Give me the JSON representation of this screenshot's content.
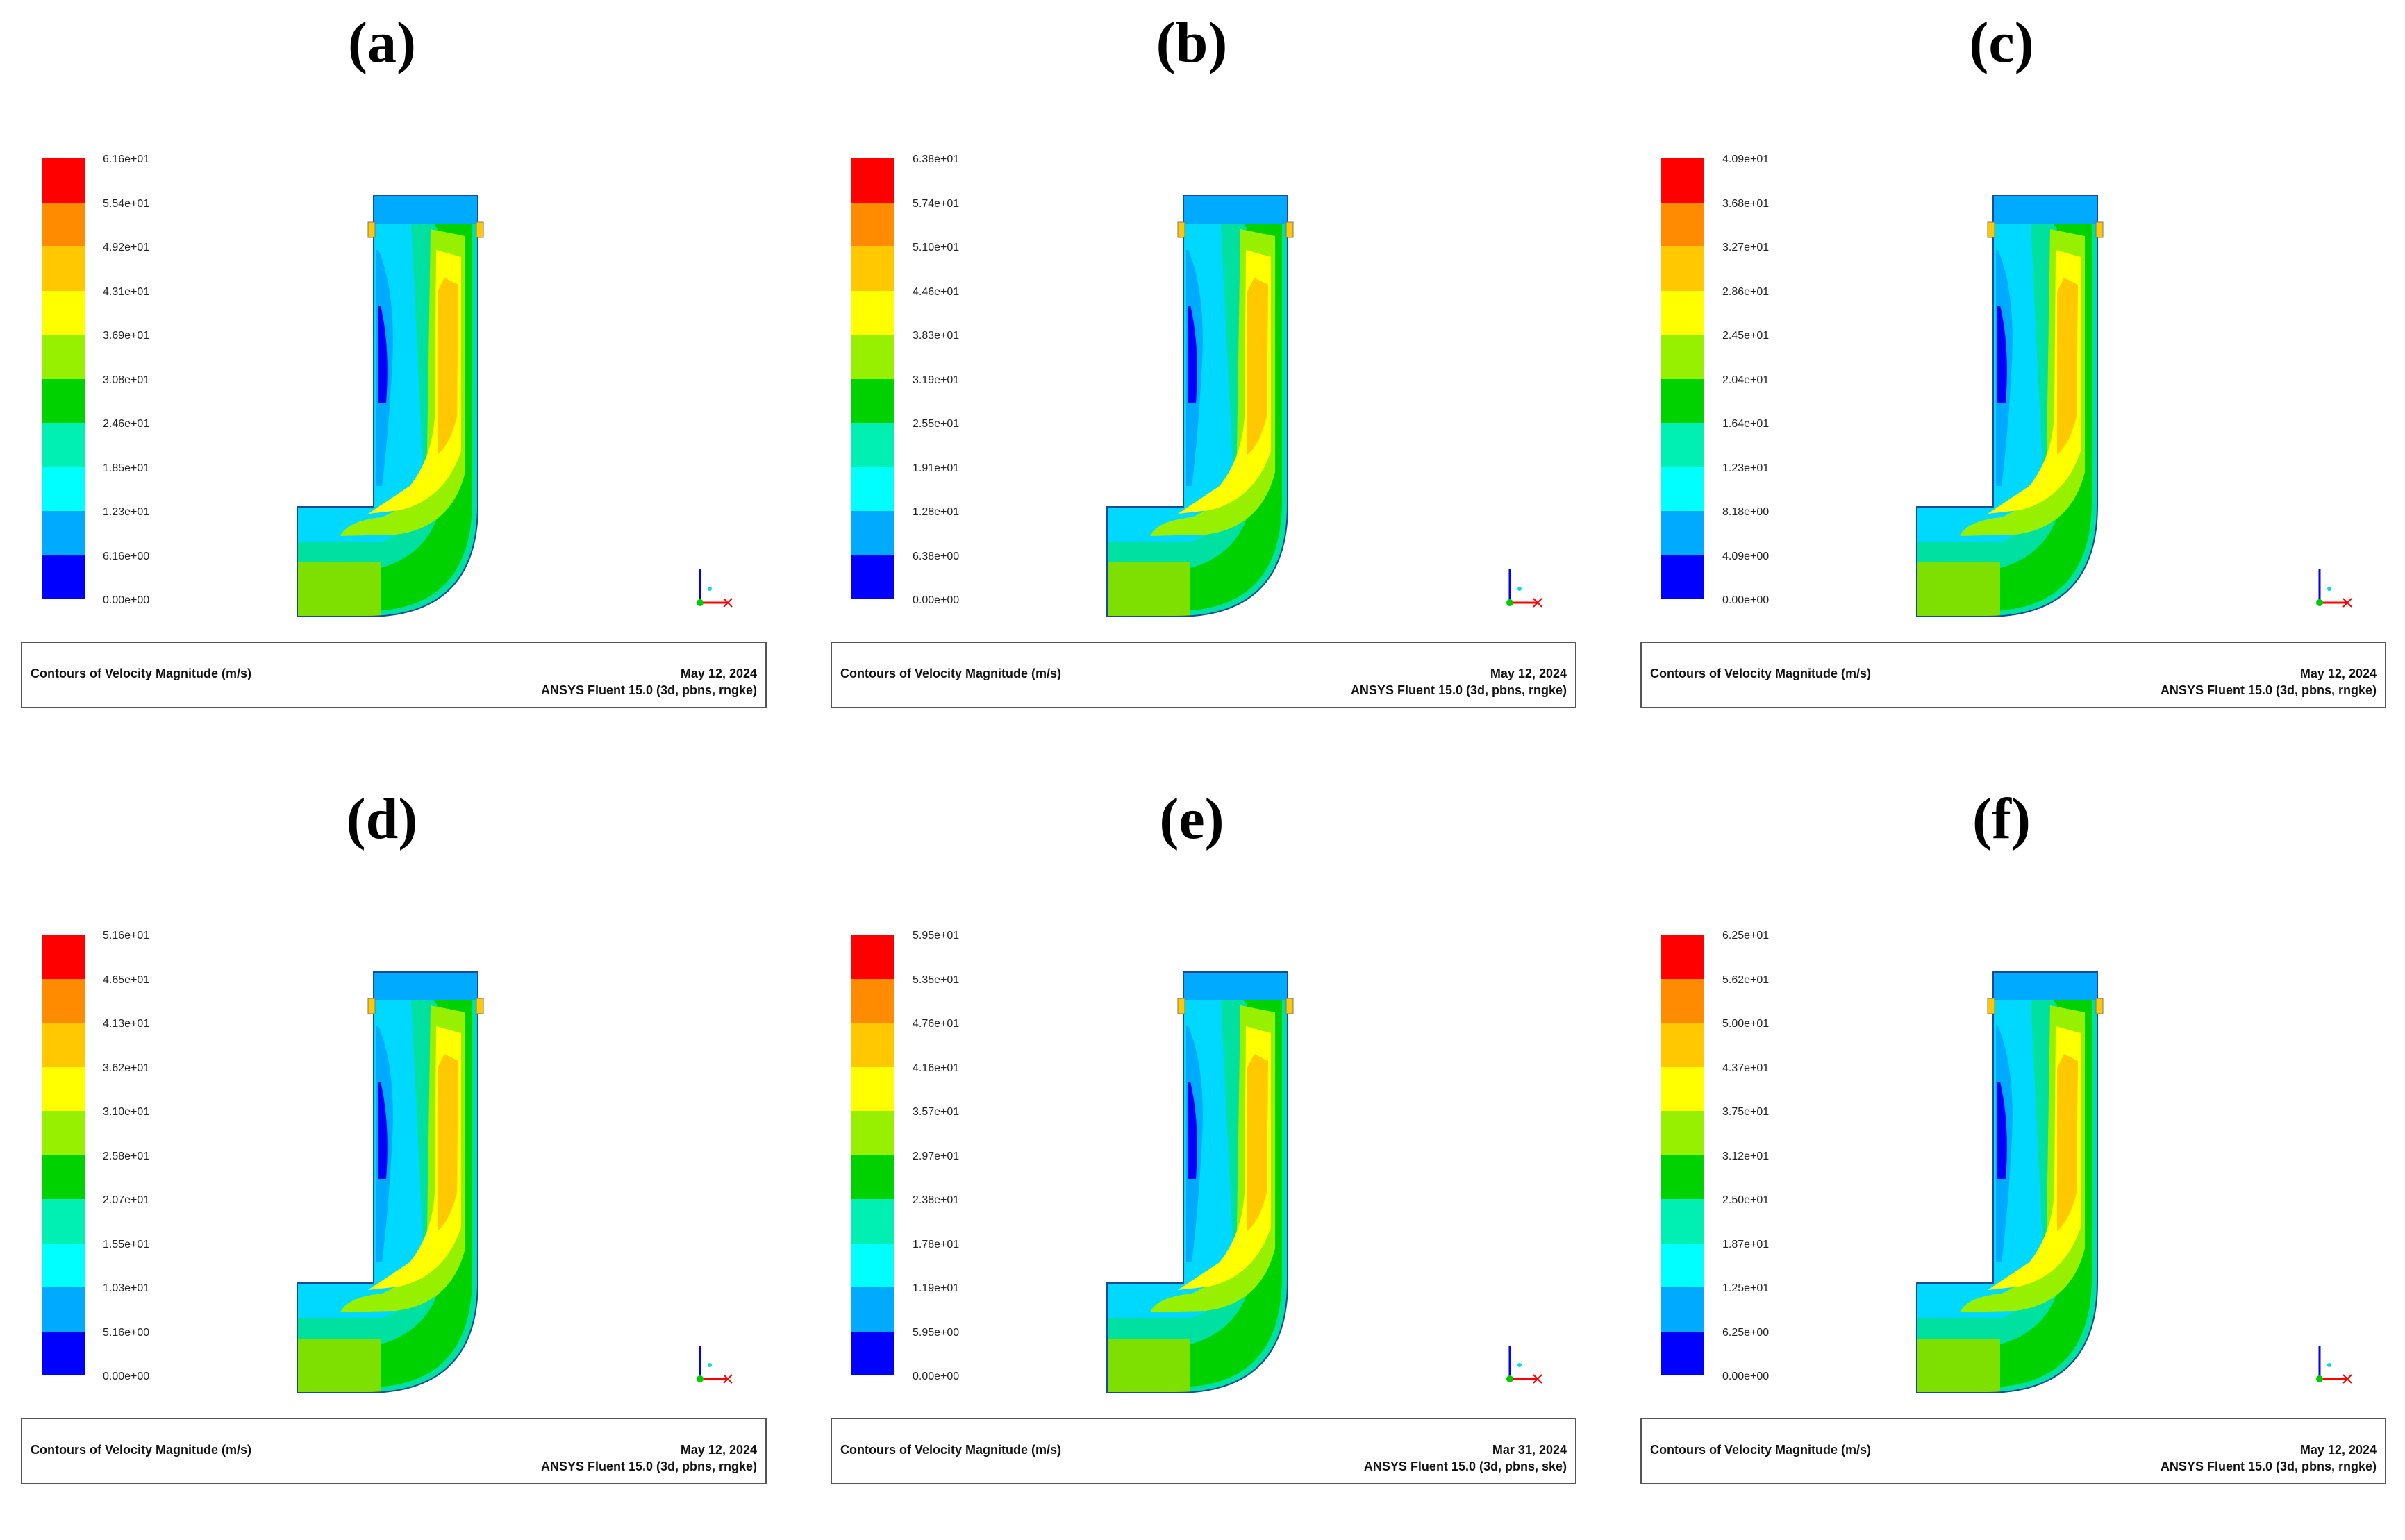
{
  "legend_colors": [
    "#ff0000",
    "#ff8c00",
    "#ffc800",
    "#ffff00",
    "#96f000",
    "#00d200",
    "#00f0b4",
    "#00ffff",
    "#00aaff",
    "#0000ff"
  ],
  "panels": [
    {
      "label": "(a)",
      "ticks": [
        "6.16e+01",
        "5.54e+01",
        "4.92e+01",
        "4.31e+01",
        "3.69e+01",
        "3.08e+01",
        "2.46e+01",
        "1.85e+01",
        "1.23e+01",
        "6.16e+00",
        "0.00e+00"
      ],
      "title": "Contours of Velocity Magnitude (m/s)",
      "date": "May 12, 2024",
      "solver": "ANSYS Fluent 15.0 (3d, pbns, rngke)"
    },
    {
      "label": "(b)",
      "ticks": [
        "6.38e+01",
        "5.74e+01",
        "5.10e+01",
        "4.46e+01",
        "3.83e+01",
        "3.19e+01",
        "2.55e+01",
        "1.91e+01",
        "1.28e+01",
        "6.38e+00",
        "0.00e+00"
      ],
      "title": "Contours of Velocity Magnitude (m/s)",
      "date": "May 12, 2024",
      "solver": "ANSYS Fluent 15.0 (3d, pbns, rngke)"
    },
    {
      "label": "(c)",
      "ticks": [
        "4.09e+01",
        "3.68e+01",
        "3.27e+01",
        "2.86e+01",
        "2.45e+01",
        "2.04e+01",
        "1.64e+01",
        "1.23e+01",
        "8.18e+00",
        "4.09e+00",
        "0.00e+00"
      ],
      "title": "Contours of Velocity Magnitude (m/s)",
      "date": "May 12, 2024",
      "solver": "ANSYS Fluent 15.0 (3d, pbns, rngke)"
    },
    {
      "label": "(d)",
      "ticks": [
        "5.16e+01",
        "4.65e+01",
        "4.13e+01",
        "3.62e+01",
        "3.10e+01",
        "2.58e+01",
        "2.07e+01",
        "1.55e+01",
        "1.03e+01",
        "5.16e+00",
        "0.00e+00"
      ],
      "title": "Contours of Velocity Magnitude (m/s)",
      "date": "May 12, 2024",
      "solver": "ANSYS Fluent 15.0 (3d, pbns, rngke)"
    },
    {
      "label": "(e)",
      "ticks": [
        "5.95e+01",
        "5.35e+01",
        "4.76e+01",
        "4.16e+01",
        "3.57e+01",
        "2.97e+01",
        "2.38e+01",
        "1.78e+01",
        "1.19e+01",
        "5.95e+00",
        "0.00e+00"
      ],
      "title": "Contours of Velocity Magnitude (m/s)",
      "date": "Mar 31, 2024",
      "solver": "ANSYS Fluent 15.0 (3d, pbns, ske)"
    },
    {
      "label": "(f)",
      "ticks": [
        "6.25e+01",
        "5.62e+01",
        "5.00e+01",
        "4.37e+01",
        "3.75e+01",
        "3.12e+01",
        "2.50e+01",
        "1.87e+01",
        "1.25e+01",
        "6.25e+00",
        "0.00e+00"
      ],
      "title": "Contours of Velocity Magnitude (m/s)",
      "date": "May 12, 2024",
      "solver": "ANSYS Fluent 15.0 (3d, pbns, rngke)"
    }
  ]
}
